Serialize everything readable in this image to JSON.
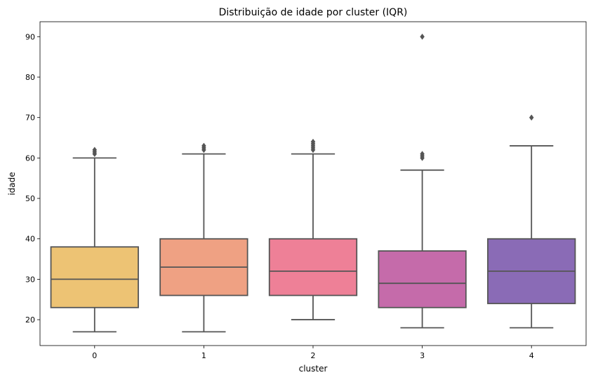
{
  "chart_data": {
    "type": "box",
    "title": "Distribuição de idade por cluster (IQR)",
    "xlabel": "cluster",
    "ylabel": "idade",
    "ylim": [
      13.6,
      93.7
    ],
    "yticks": [
      20,
      30,
      40,
      50,
      60,
      70,
      80,
      90
    ],
    "grid": false,
    "categories": [
      "0",
      "1",
      "2",
      "3",
      "4"
    ],
    "colors": [
      "#EDC374",
      "#EFA183",
      "#EE8097",
      "#C56BAA",
      "#8A6BB6"
    ],
    "edge_color": "#555555",
    "boxes": [
      {
        "whisker_low": 17,
        "q1": 23,
        "median": 30,
        "q3": 38,
        "whisker_high": 60,
        "outliers": [
          61,
          61.5,
          62
        ]
      },
      {
        "whisker_low": 17,
        "q1": 26,
        "median": 33,
        "q3": 40,
        "whisker_high": 61,
        "outliers": [
          62,
          62.5,
          63
        ]
      },
      {
        "whisker_low": 20,
        "q1": 26,
        "median": 32,
        "q3": 40,
        "whisker_high": 61,
        "outliers": [
          62,
          62.5,
          63,
          63.5,
          64
        ]
      },
      {
        "whisker_low": 18,
        "q1": 23,
        "median": 29,
        "q3": 37,
        "whisker_high": 57,
        "outliers": [
          60,
          60.5,
          61,
          90
        ]
      },
      {
        "whisker_low": 18,
        "q1": 24,
        "median": 32,
        "q3": 40,
        "whisker_high": 63,
        "outliers": [
          70
        ]
      }
    ]
  }
}
